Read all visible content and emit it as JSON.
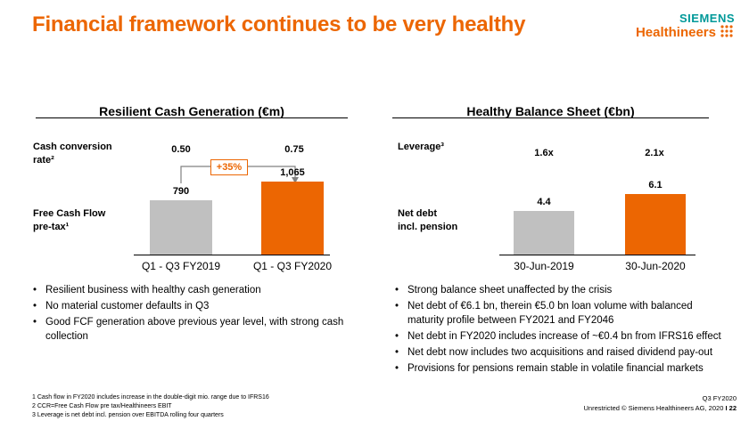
{
  "header": {
    "title": "Financial framework continues to be very healthy",
    "logo_line1": "SIEMENS",
    "logo_line2": "Healthineers",
    "logo_icon": "healthineers-dots-icon"
  },
  "colors": {
    "accent": "#ec6602",
    "grey_bar": "#c0c0c0",
    "teal": "#009999"
  },
  "left": {
    "heading": "Resilient Cash Generation (€m)",
    "row1_label": [
      "Cash conversion",
      "rate²"
    ],
    "row2_label": [
      "Free Cash Flow",
      "pre-tax¹"
    ],
    "ratio_values": [
      "0.50",
      "0.75"
    ],
    "growth_badge": "+35%",
    "bullets": [
      "Resilient business with healthy cash generation",
      "No material customer defaults in Q3",
      "Good FCF generation above previous year level, with strong cash collection"
    ]
  },
  "right": {
    "heading": "Healthy Balance Sheet (€bn)",
    "row1_label": [
      "Leverage³"
    ],
    "row2_label": [
      "Net debt",
      "incl. pension"
    ],
    "ratio_values": [
      "1.6x",
      "2.1x"
    ],
    "bullets": [
      "Strong balance sheet unaffected by the crisis",
      "Net debt of €6.1 bn, therein €5.0 bn loan volume with balanced maturity profile between FY2021 and FY2046",
      "Net debt in FY2020 includes increase of ~€0.4 bn from IFRS16 effect",
      "Net debt now includes two acquisitions and raised dividend pay-out",
      "Provisions for pensions remain stable in volatile financial markets"
    ]
  },
  "chart_data": [
    {
      "type": "bar",
      "title": "Resilient Cash Generation (€m)",
      "categories": [
        "Q1 - Q3 FY2019",
        "Q1 - Q3 FY2020"
      ],
      "values": [
        790,
        1065
      ],
      "value_labels": [
        "790",
        "1,065"
      ],
      "ylabel": "Free Cash Flow pre-tax",
      "ylim": [
        0,
        1200
      ],
      "colors": [
        "#c0c0c0",
        "#ec6602"
      ]
    },
    {
      "type": "bar",
      "title": "Healthy Balance Sheet (€bn)",
      "categories": [
        "30-Jun-2019",
        "30-Jun-2020"
      ],
      "values": [
        4.4,
        6.1
      ],
      "value_labels": [
        "4.4",
        "6.1"
      ],
      "ylabel": "Net debt incl. pension",
      "ylim": [
        0,
        7.4
      ],
      "colors": [
        "#c0c0c0",
        "#ec6602"
      ]
    }
  ],
  "footnotes": [
    "1 Cash flow in FY2020 includes increase in the double-digit mio. range due to IFRS16",
    "2 CCR=Free Cash Flow pre tax/Healthineers EBIT",
    "3 Leverage is net debt incl. pension over EBITDA rolling four quarters"
  ],
  "footer_right": {
    "line1": "Q3 FY2020",
    "line2": "Unrestricted © Siemens Healthineers AG, 2020",
    "separator": "I",
    "page": "22"
  }
}
